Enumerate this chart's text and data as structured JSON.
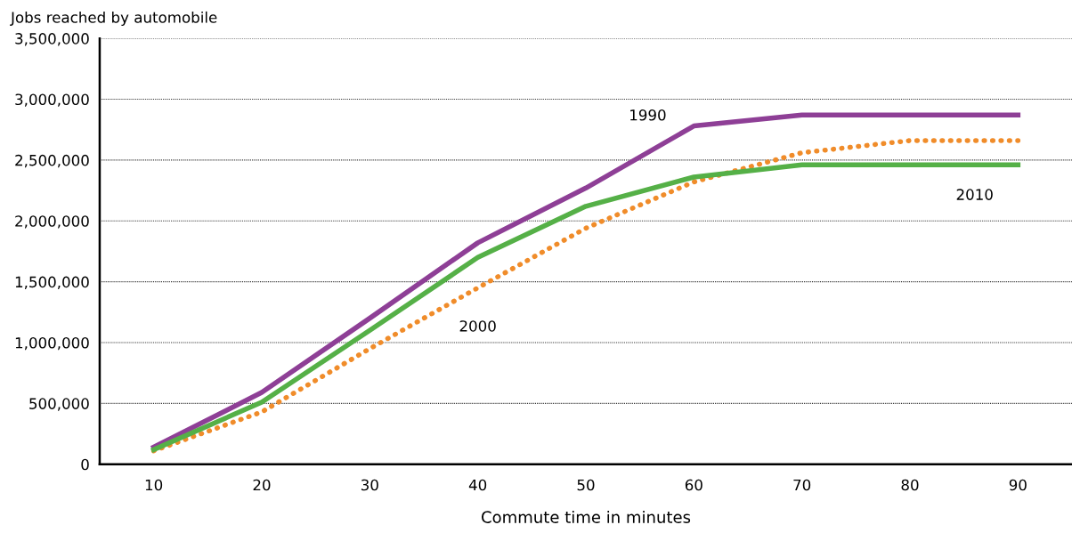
{
  "chart_data": {
    "type": "line",
    "ylabel": "Jobs reached by automobile",
    "xlabel": "Commute time in minutes",
    "x": [
      10,
      20,
      30,
      40,
      50,
      60,
      70,
      80,
      90
    ],
    "series": [
      {
        "name": "1990",
        "color": "#8e3f96",
        "line_style": "solid",
        "values": [
          140000,
          590000,
          1200000,
          1820000,
          2270000,
          2780000,
          2870000,
          2870000,
          2870000
        ]
      },
      {
        "name": "2000",
        "color": "#f08c2a",
        "line_style": "dotted",
        "values": [
          110000,
          430000,
          950000,
          1450000,
          1940000,
          2320000,
          2560000,
          2660000,
          2660000
        ]
      },
      {
        "name": "2010",
        "color": "#55b047",
        "line_style": "solid",
        "values": [
          120000,
          510000,
          1100000,
          1700000,
          2120000,
          2360000,
          2460000,
          2460000,
          2460000
        ]
      }
    ],
    "xlim": [
      5,
      95
    ],
    "xticks": [
      10,
      20,
      30,
      40,
      50,
      60,
      70,
      80,
      90
    ],
    "ylim": [
      0,
      3500000
    ],
    "yticks": [
      {
        "value": 0,
        "label": "0"
      },
      {
        "value": 500000,
        "label": "500,000"
      },
      {
        "value": 1000000,
        "label": "1,000,000"
      },
      {
        "value": 1500000,
        "label": "1,500,000"
      },
      {
        "value": 2000000,
        "label": "2,000,000"
      },
      {
        "value": 2500000,
        "label": "2,500,000"
      },
      {
        "value": 3000000,
        "label": "3,000,000"
      },
      {
        "value": 3500000,
        "label": "3,500,000"
      }
    ],
    "grid": "y",
    "legend": false,
    "marker": "none"
  }
}
